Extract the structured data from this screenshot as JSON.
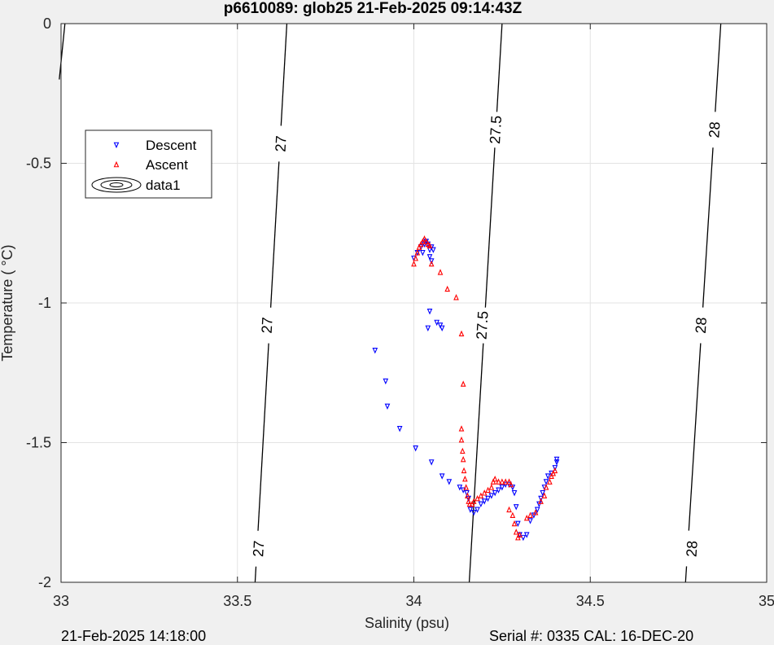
{
  "figure": {
    "title": "p6610089: glob25 21-Feb-2025 09:14:43Z",
    "footer_left": "21-Feb-2025 14:18:00",
    "footer_right": "Serial #: 0335  CAL: 16-DEC-20"
  },
  "chart_data": {
    "type": "scatter",
    "title": "p6610089: glob25 21-Feb-2025 09:14:43Z",
    "xlabel": "Salinity (psu)",
    "ylabel": "Temperature (   °C)",
    "xlim": [
      33,
      35
    ],
    "ylim": [
      -2,
      0
    ],
    "xticks": [
      33,
      33.5,
      34,
      34.5,
      35
    ],
    "xtick_labels": [
      "33",
      "33.5",
      "34",
      "34.5",
      "35"
    ],
    "yticks": [
      -2,
      -1.5,
      -1,
      -0.5,
      0
    ],
    "ytick_labels": [
      "-2",
      "-1.5",
      "-1",
      "-0.5",
      "0"
    ],
    "grid": true,
    "legend": {
      "placement": "upper-left",
      "entries": [
        {
          "label": "Descent",
          "marker": "triangle-down",
          "color": "#0000ff"
        },
        {
          "label": "Ascent",
          "marker": "triangle-up",
          "color": "#ff0000"
        },
        {
          "label": "data1",
          "marker": "contour",
          "color": "#000000"
        }
      ]
    },
    "contours": [
      {
        "level": "27",
        "points": [
          [
            33.64,
            0
          ],
          [
            33.55,
            -2
          ]
        ],
        "labels": [
          {
            "x": 33.623,
            "y": -0.43
          },
          {
            "x": 33.584,
            "y": -1.08
          },
          {
            "x": 33.56,
            "y": -1.88
          }
        ]
      },
      {
        "level": "27.5",
        "points": [
          [
            34.25,
            0
          ],
          [
            34.157,
            -2
          ]
        ],
        "labels": [
          {
            "x": 34.232,
            "y": -0.38
          },
          {
            "x": 34.194,
            "y": -1.08
          }
        ]
      },
      {
        "level": "28",
        "points": [
          [
            34.87,
            0
          ],
          [
            34.77,
            -2
          ]
        ],
        "labels": [
          {
            "x": 34.852,
            "y": -0.38
          },
          {
            "x": 34.814,
            "y": -1.08
          },
          {
            "x": 34.788,
            "y": -1.88
          }
        ]
      },
      {
        "level": "",
        "points": [
          [
            33.011,
            0
          ],
          [
            32.995,
            -0.2
          ]
        ],
        "labels": []
      }
    ],
    "series": [
      {
        "name": "Descent",
        "marker": "triangle-down",
        "color": "#0000ff",
        "points": [
          [
            33.89,
            -1.17
          ],
          [
            33.92,
            -1.28
          ],
          [
            33.925,
            -1.37
          ],
          [
            33.96,
            -1.45
          ],
          [
            34.005,
            -1.52
          ],
          [
            34.05,
            -1.57
          ],
          [
            34.08,
            -1.62
          ],
          [
            34.1,
            -1.64
          ],
          [
            34.13,
            -1.66
          ],
          [
            34.14,
            -1.67
          ],
          [
            34.15,
            -1.68
          ],
          [
            34.155,
            -1.7
          ],
          [
            34.16,
            -1.74
          ],
          [
            34.17,
            -1.75
          ],
          [
            34.18,
            -1.74
          ],
          [
            34.19,
            -1.72
          ],
          [
            34.2,
            -1.71
          ],
          [
            34.21,
            -1.7
          ],
          [
            34.22,
            -1.69
          ],
          [
            34.23,
            -1.68
          ],
          [
            34.24,
            -1.67
          ],
          [
            34.25,
            -1.66
          ],
          [
            34.26,
            -1.65
          ],
          [
            34.27,
            -1.65
          ],
          [
            34.28,
            -1.66
          ],
          [
            34.285,
            -1.68
          ],
          [
            34.29,
            -1.73
          ],
          [
            34.295,
            -1.79
          ],
          [
            34.3,
            -1.83
          ],
          [
            34.31,
            -1.84
          ],
          [
            34.32,
            -1.83
          ],
          [
            34.33,
            -1.78
          ],
          [
            34.34,
            -1.76
          ],
          [
            34.35,
            -1.74
          ],
          [
            34.355,
            -1.72
          ],
          [
            34.36,
            -1.7
          ],
          [
            34.365,
            -1.68
          ],
          [
            34.37,
            -1.66
          ],
          [
            34.375,
            -1.64
          ],
          [
            34.38,
            -1.62
          ],
          [
            34.39,
            -1.61
          ],
          [
            34.4,
            -1.59
          ],
          [
            34.405,
            -1.57
          ],
          [
            34.405,
            -1.56
          ],
          [
            34.04,
            -1.09
          ],
          [
            34.045,
            -1.03
          ],
          [
            34.065,
            -1.07
          ],
          [
            34.075,
            -1.08
          ],
          [
            34.08,
            -1.09
          ],
          [
            34.0,
            -0.84
          ],
          [
            34.01,
            -0.82
          ],
          [
            34.02,
            -0.8
          ],
          [
            34.03,
            -0.79
          ],
          [
            34.035,
            -0.78
          ],
          [
            34.04,
            -0.79
          ],
          [
            34.045,
            -0.81
          ],
          [
            34.05,
            -0.8
          ],
          [
            34.055,
            -0.81
          ],
          [
            34.025,
            -0.82
          ],
          [
            34.045,
            -0.835
          ],
          [
            34.05,
            -0.85
          ]
        ]
      },
      {
        "name": "Ascent",
        "marker": "triangle-up",
        "color": "#ff0000",
        "points": [
          [
            34.0,
            -0.86
          ],
          [
            34.005,
            -0.84
          ],
          [
            34.01,
            -0.82
          ],
          [
            34.015,
            -0.8
          ],
          [
            34.02,
            -0.79
          ],
          [
            34.025,
            -0.78
          ],
          [
            34.03,
            -0.77
          ],
          [
            34.035,
            -0.78
          ],
          [
            34.04,
            -0.79
          ],
          [
            34.045,
            -0.795
          ],
          [
            34.05,
            -0.86
          ],
          [
            34.075,
            -0.89
          ],
          [
            34.095,
            -0.95
          ],
          [
            34.12,
            -0.98
          ],
          [
            34.135,
            -1.11
          ],
          [
            34.14,
            -1.29
          ],
          [
            34.135,
            -1.45
          ],
          [
            34.135,
            -1.49
          ],
          [
            34.138,
            -1.53
          ],
          [
            34.14,
            -1.56
          ],
          [
            34.142,
            -1.6
          ],
          [
            34.145,
            -1.63
          ],
          [
            34.148,
            -1.66
          ],
          [
            34.152,
            -1.69
          ],
          [
            34.155,
            -1.71
          ],
          [
            34.158,
            -1.72
          ],
          [
            34.165,
            -1.72
          ],
          [
            34.17,
            -1.71
          ],
          [
            34.18,
            -1.7
          ],
          [
            34.19,
            -1.69
          ],
          [
            34.2,
            -1.68
          ],
          [
            34.21,
            -1.67
          ],
          [
            34.22,
            -1.66
          ],
          [
            34.225,
            -1.64
          ],
          [
            34.23,
            -1.63
          ],
          [
            34.24,
            -1.64
          ],
          [
            34.25,
            -1.64
          ],
          [
            34.26,
            -1.64
          ],
          [
            34.27,
            -1.64
          ],
          [
            34.275,
            -1.65
          ],
          [
            34.27,
            -1.74
          ],
          [
            34.28,
            -1.76
          ],
          [
            34.285,
            -1.79
          ],
          [
            34.29,
            -1.82
          ],
          [
            34.295,
            -1.84
          ],
          [
            34.3,
            -1.83
          ],
          [
            34.32,
            -1.77
          ],
          [
            34.33,
            -1.76
          ],
          [
            34.345,
            -1.75
          ],
          [
            34.36,
            -1.71
          ],
          [
            34.37,
            -1.69
          ],
          [
            34.375,
            -1.66
          ],
          [
            34.385,
            -1.64
          ],
          [
            34.39,
            -1.62
          ],
          [
            34.395,
            -1.61
          ],
          [
            34.4,
            -1.6
          ]
        ]
      }
    ]
  }
}
